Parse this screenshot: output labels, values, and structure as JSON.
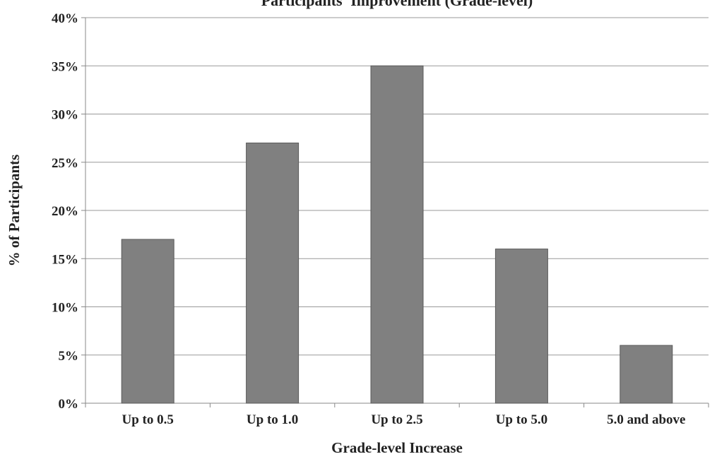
{
  "chart_data": {
    "type": "bar",
    "title": "Participants' Improvement (Grade-level)",
    "xlabel": "Grade-level Increase",
    "ylabel": "% of Participants",
    "categories": [
      "Up to 0.5",
      "Up to 1.0",
      "Up to 2.5",
      "Up to 5.0",
      "5.0 and above"
    ],
    "values": [
      17,
      27,
      35,
      16,
      6
    ],
    "ylim": [
      0,
      40
    ],
    "yticks": [
      0,
      5,
      10,
      15,
      20,
      25,
      30,
      35,
      40
    ],
    "ytick_labels": [
      "0%",
      "5%",
      "10%",
      "15%",
      "20%",
      "25%",
      "30%",
      "35%",
      "40%"
    ],
    "grid": true,
    "legend": "none",
    "bar_color": "#808080"
  }
}
